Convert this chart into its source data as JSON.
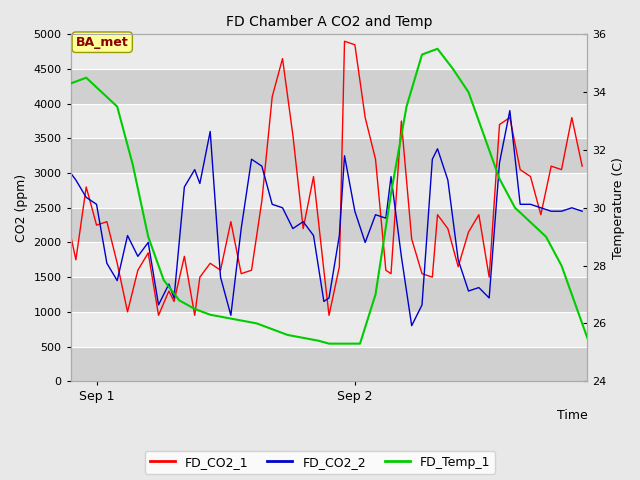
{
  "title": "FD Chamber A CO2 and Temp",
  "xlabel": "Time",
  "ylabel_left": "CO2 (ppm)",
  "ylabel_right": "Temperature (C)",
  "ylim_left": [
    0,
    5000
  ],
  "ylim_right": [
    24,
    36
  ],
  "yticks_left": [
    0,
    500,
    1000,
    1500,
    2000,
    2500,
    3000,
    3500,
    4000,
    4500,
    5000
  ],
  "yticks_right": [
    24,
    26,
    28,
    30,
    32,
    34,
    36
  ],
  "xtick_labels": [
    "Sep 1",
    "Sep 2"
  ],
  "xtick_positions": [
    0.05,
    0.55
  ],
  "annotation_text": "BA_met",
  "annotation_color": "#8B0000",
  "annotation_bg": "#FFFF99",
  "fig_bg_color": "#E8E8E8",
  "plot_bg_color": "#E8E8E8",
  "band_dark": "#D0D0D0",
  "band_light": "#EBEBEB",
  "line_colors": {
    "FD_CO2_1": "#FF0000",
    "FD_CO2_2": "#0000CD",
    "FD_Temp_1": "#00CC00"
  },
  "FD_CO2_1_x": [
    0.0,
    0.01,
    0.03,
    0.05,
    0.07,
    0.09,
    0.11,
    0.13,
    0.15,
    0.17,
    0.19,
    0.2,
    0.22,
    0.24,
    0.25,
    0.27,
    0.29,
    0.31,
    0.33,
    0.35,
    0.37,
    0.39,
    0.41,
    0.43,
    0.45,
    0.47,
    0.49,
    0.5,
    0.52,
    0.53,
    0.55,
    0.57,
    0.59,
    0.61,
    0.62,
    0.64,
    0.66,
    0.68,
    0.7,
    0.71,
    0.73,
    0.75,
    0.77,
    0.79,
    0.81,
    0.83,
    0.85,
    0.87,
    0.89,
    0.91,
    0.93,
    0.95,
    0.97,
    0.99
  ],
  "FD_CO2_1_y": [
    2100,
    1750,
    2800,
    2250,
    2300,
    1700,
    1000,
    1600,
    1850,
    950,
    1300,
    1150,
    1800,
    950,
    1500,
    1700,
    1600,
    2300,
    1550,
    1600,
    2600,
    4100,
    4650,
    3550,
    2200,
    2950,
    1600,
    950,
    1650,
    4900,
    4850,
    3800,
    3200,
    1600,
    1550,
    3750,
    2050,
    1550,
    1500,
    2400,
    2200,
    1650,
    2150,
    2400,
    1500,
    3700,
    3800,
    3050,
    2950,
    2400,
    3100,
    3050,
    3800,
    3100
  ],
  "FD_CO2_2_x": [
    0.0,
    0.01,
    0.03,
    0.05,
    0.07,
    0.09,
    0.11,
    0.13,
    0.15,
    0.17,
    0.19,
    0.2,
    0.22,
    0.24,
    0.25,
    0.27,
    0.29,
    0.31,
    0.33,
    0.35,
    0.37,
    0.39,
    0.41,
    0.43,
    0.45,
    0.47,
    0.49,
    0.5,
    0.52,
    0.53,
    0.55,
    0.57,
    0.59,
    0.61,
    0.62,
    0.64,
    0.66,
    0.68,
    0.7,
    0.71,
    0.73,
    0.75,
    0.77,
    0.79,
    0.81,
    0.83,
    0.85,
    0.87,
    0.89,
    0.91,
    0.93,
    0.95,
    0.97,
    0.99
  ],
  "FD_CO2_2_y": [
    3000,
    2900,
    2650,
    2550,
    1700,
    1450,
    2100,
    1800,
    2000,
    1100,
    1400,
    1200,
    2800,
    3050,
    2850,
    3600,
    1500,
    950,
    2200,
    3200,
    3100,
    2550,
    2500,
    2200,
    2300,
    2100,
    1150,
    1200,
    2100,
    3250,
    2450,
    2000,
    2400,
    2350,
    2950,
    1800,
    800,
    1100,
    3200,
    3350,
    2900,
    1750,
    1300,
    1350,
    1200,
    3150,
    3900,
    2550,
    2550,
    2500,
    2450,
    2450,
    2500,
    2450
  ],
  "FD_Temp_1_x": [
    0.0,
    0.03,
    0.06,
    0.09,
    0.12,
    0.15,
    0.18,
    0.21,
    0.24,
    0.27,
    0.3,
    0.33,
    0.36,
    0.39,
    0.42,
    0.45,
    0.48,
    0.5,
    0.53,
    0.56,
    0.59,
    0.62,
    0.65,
    0.68,
    0.71,
    0.74,
    0.77,
    0.8,
    0.83,
    0.86,
    0.89,
    0.92,
    0.95,
    0.98,
    1.0
  ],
  "FD_Temp_1_y": [
    34.3,
    34.5,
    34.0,
    33.5,
    31.5,
    29.0,
    27.5,
    26.8,
    26.5,
    26.3,
    26.2,
    26.1,
    26.0,
    25.8,
    25.6,
    25.5,
    25.4,
    25.3,
    25.3,
    25.3,
    27.0,
    30.5,
    33.5,
    35.3,
    35.5,
    34.8,
    34.0,
    32.5,
    31.0,
    30.0,
    29.5,
    29.0,
    28.0,
    26.5,
    25.5
  ]
}
